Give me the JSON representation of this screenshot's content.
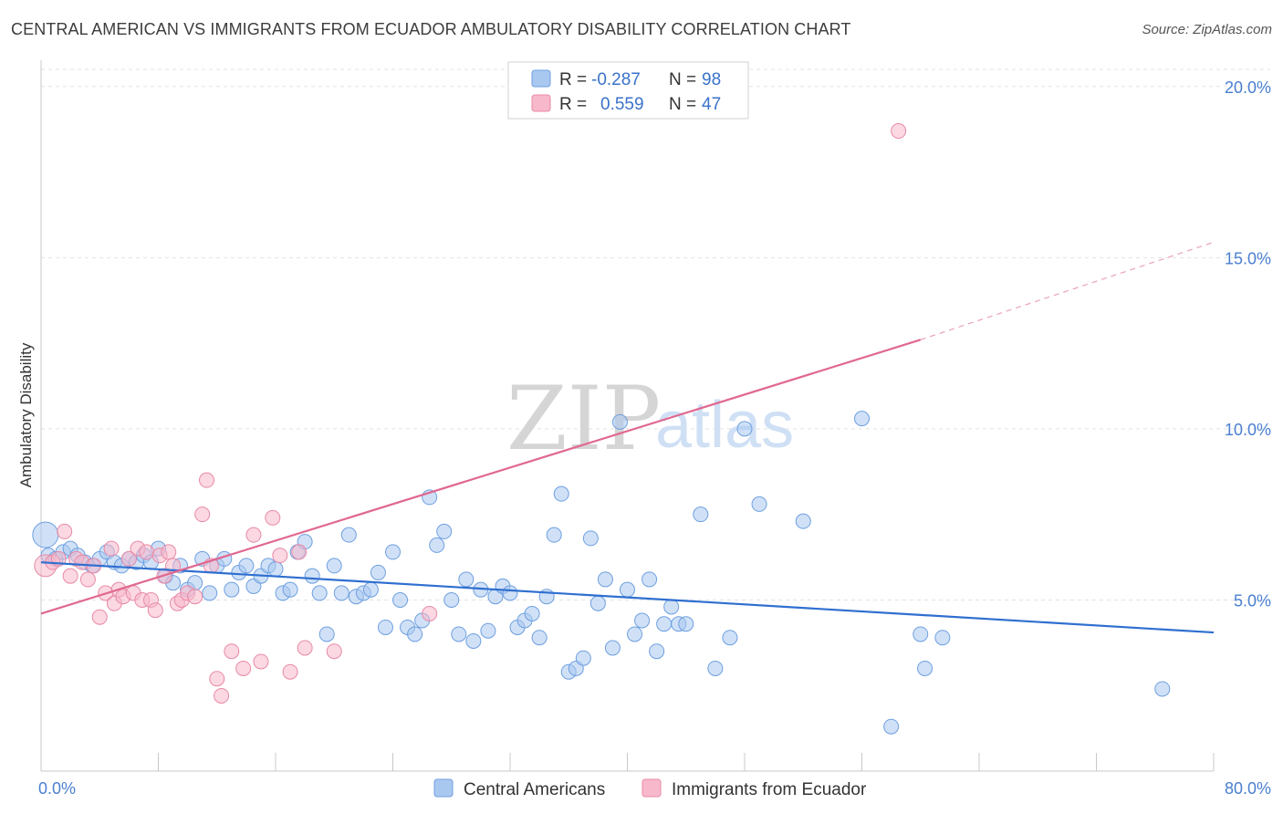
{
  "title": "CENTRAL AMERICAN VS IMMIGRANTS FROM ECUADOR AMBULATORY DISABILITY CORRELATION CHART",
  "source": "Source: ZipAtlas.com",
  "watermark": {
    "zip": "ZIP",
    "atlas": "atlas"
  },
  "legend": {
    "rows": [
      {
        "r_label": "R =",
        "r_value": "-0.287",
        "n_label": "N =",
        "n_value": "98",
        "color": "#a9c8f0",
        "stroke": "#6e9fe0"
      },
      {
        "r_label": "R =",
        "r_value": "0.559",
        "n_label": "N =",
        "n_value": "47",
        "color": "#f7b8cb",
        "stroke": "#e88aa6"
      }
    ]
  },
  "bottom_legend": [
    {
      "label": "Central Americans",
      "color": "#a9c8f0",
      "stroke": "#6e9fe0"
    },
    {
      "label": "Immigrants from Ecuador",
      "color": "#f7b8cb",
      "stroke": "#e88aa6"
    }
  ],
  "chart_data": {
    "type": "scatter",
    "ylabel": "Ambulatory Disability",
    "xlim": [
      0,
      80
    ],
    "ylim": [
      0,
      20.5
    ],
    "x_tick_labels": [
      "0.0%",
      "80.0%"
    ],
    "y_ticks": [
      5,
      10,
      15,
      20
    ],
    "y_tick_labels": [
      "5.0%",
      "10.0%",
      "15.0%",
      "20.0%"
    ],
    "grid": true,
    "series": [
      {
        "name": "Central Americans",
        "color": "#6e9fe0",
        "fill": "#a9c8f0",
        "trend": {
          "x0": 0,
          "y0": 6.1,
          "x1": 80,
          "y1": 4.05
        },
        "points": [
          [
            0.3,
            6.9,
            14
          ],
          [
            0.5,
            6.3,
            8
          ],
          [
            1.0,
            6.2,
            8
          ],
          [
            1.5,
            6.4,
            8
          ],
          [
            2.0,
            6.5,
            8
          ],
          [
            2.5,
            6.3,
            8
          ],
          [
            3.0,
            6.1,
            8
          ],
          [
            3.5,
            6.0,
            8
          ],
          [
            4.0,
            6.2,
            8
          ],
          [
            4.5,
            6.4,
            8
          ],
          [
            5.0,
            6.1,
            8
          ],
          [
            5.5,
            6.0,
            8
          ],
          [
            6.0,
            6.2,
            8
          ],
          [
            6.5,
            6.1,
            8
          ],
          [
            7.0,
            6.3,
            8
          ],
          [
            7.5,
            6.1,
            8
          ],
          [
            8.0,
            6.5,
            8
          ],
          [
            8.5,
            5.7,
            8
          ],
          [
            9.0,
            5.5,
            8
          ],
          [
            9.5,
            6.0,
            8
          ],
          [
            10.0,
            5.3,
            8
          ],
          [
            10.5,
            5.5,
            8
          ],
          [
            11.0,
            6.2,
            8
          ],
          [
            11.5,
            5.2,
            8
          ],
          [
            12.0,
            6.0,
            8
          ],
          [
            12.5,
            6.2,
            8
          ],
          [
            13.0,
            5.3,
            8
          ],
          [
            13.5,
            5.8,
            8
          ],
          [
            14.0,
            6.0,
            8
          ],
          [
            14.5,
            5.4,
            8
          ],
          [
            15.0,
            5.7,
            8
          ],
          [
            15.5,
            6.0,
            8
          ],
          [
            16.0,
            5.9,
            8
          ],
          [
            16.5,
            5.2,
            8
          ],
          [
            17.0,
            5.3,
            8
          ],
          [
            17.5,
            6.4,
            8
          ],
          [
            18.0,
            6.7,
            8
          ],
          [
            18.5,
            5.7,
            8
          ],
          [
            19.0,
            5.2,
            8
          ],
          [
            19.5,
            4.0,
            8
          ],
          [
            20.0,
            6.0,
            8
          ],
          [
            20.5,
            5.2,
            8
          ],
          [
            21.0,
            6.9,
            8
          ],
          [
            21.5,
            5.1,
            8
          ],
          [
            22.0,
            5.2,
            8
          ],
          [
            22.5,
            5.3,
            8
          ],
          [
            23.0,
            5.8,
            8
          ],
          [
            23.5,
            4.2,
            8
          ],
          [
            24.0,
            6.4,
            8
          ],
          [
            24.5,
            5.0,
            8
          ],
          [
            25.0,
            4.2,
            8
          ],
          [
            25.5,
            4.0,
            8
          ],
          [
            26.0,
            4.4,
            8
          ],
          [
            26.5,
            8.0,
            8
          ],
          [
            27.0,
            6.6,
            8
          ],
          [
            27.5,
            7.0,
            8
          ],
          [
            28.0,
            5.0,
            8
          ],
          [
            28.5,
            4.0,
            8
          ],
          [
            29.0,
            5.6,
            8
          ],
          [
            29.5,
            3.8,
            8
          ],
          [
            30.0,
            5.3,
            8
          ],
          [
            30.5,
            4.1,
            8
          ],
          [
            31.0,
            5.1,
            8
          ],
          [
            31.5,
            5.4,
            8
          ],
          [
            32.0,
            5.2,
            8
          ],
          [
            32.5,
            4.2,
            8
          ],
          [
            33.0,
            4.4,
            8
          ],
          [
            33.5,
            4.6,
            8
          ],
          [
            34.0,
            3.9,
            8
          ],
          [
            34.5,
            5.1,
            8
          ],
          [
            35.0,
            6.9,
            8
          ],
          [
            35.5,
            8.1,
            8
          ],
          [
            36.0,
            2.9,
            8
          ],
          [
            36.5,
            3.0,
            8
          ],
          [
            37.0,
            3.3,
            8
          ],
          [
            37.5,
            6.8,
            8
          ],
          [
            38.0,
            4.9,
            8
          ],
          [
            38.5,
            5.6,
            8
          ],
          [
            39.0,
            3.6,
            8
          ],
          [
            39.5,
            10.2,
            8
          ],
          [
            40.0,
            5.3,
            8
          ],
          [
            40.5,
            4.0,
            8
          ],
          [
            41.0,
            4.4,
            8
          ],
          [
            41.5,
            5.6,
            8
          ],
          [
            42.0,
            3.5,
            8
          ],
          [
            42.5,
            4.3,
            8
          ],
          [
            43.0,
            4.8,
            8
          ],
          [
            43.5,
            4.3,
            8
          ],
          [
            44.0,
            4.3,
            8
          ],
          [
            45.0,
            7.5,
            8
          ],
          [
            46.0,
            3.0,
            8
          ],
          [
            47.0,
            3.9,
            8
          ],
          [
            48.0,
            10.0,
            8
          ],
          [
            49.0,
            7.8,
            8
          ],
          [
            52.0,
            7.3,
            8
          ],
          [
            56.0,
            10.3,
            8
          ],
          [
            58.0,
            1.3,
            8
          ],
          [
            60.0,
            4.0,
            8
          ],
          [
            60.3,
            3.0,
            8
          ],
          [
            61.5,
            3.9,
            8
          ],
          [
            76.5,
            2.4,
            8
          ]
        ]
      },
      {
        "name": "Immigrants from Ecuador",
        "color": "#e88aa6",
        "fill": "#f7b8cb",
        "trend": {
          "x0": 0,
          "y0": 4.6,
          "x1": 60,
          "y1": 12.6
        },
        "trend_extension": {
          "x1": 80,
          "y1": 15.45
        },
        "points": [
          [
            0.3,
            6.0,
            12
          ],
          [
            0.8,
            6.1,
            8
          ],
          [
            1.2,
            6.2,
            8
          ],
          [
            1.6,
            7.0,
            8
          ],
          [
            2.0,
            5.7,
            8
          ],
          [
            2.4,
            6.2,
            8
          ],
          [
            2.8,
            6.1,
            8
          ],
          [
            3.2,
            5.6,
            8
          ],
          [
            3.6,
            6.0,
            8
          ],
          [
            4.0,
            4.5,
            8
          ],
          [
            4.4,
            5.2,
            8
          ],
          [
            4.8,
            6.5,
            8
          ],
          [
            5.0,
            4.9,
            8
          ],
          [
            5.3,
            5.3,
            8
          ],
          [
            5.6,
            5.1,
            8
          ],
          [
            6.0,
            6.2,
            8
          ],
          [
            6.3,
            5.2,
            8
          ],
          [
            6.6,
            6.5,
            8
          ],
          [
            6.9,
            5.0,
            8
          ],
          [
            7.2,
            6.4,
            8
          ],
          [
            7.5,
            5.0,
            8
          ],
          [
            7.8,
            4.7,
            8
          ],
          [
            8.1,
            6.3,
            8
          ],
          [
            8.4,
            5.7,
            8
          ],
          [
            8.7,
            6.4,
            8
          ],
          [
            9.0,
            6.0,
            8
          ],
          [
            9.3,
            4.9,
            8
          ],
          [
            9.6,
            5.0,
            8
          ],
          [
            10.0,
            5.2,
            8
          ],
          [
            10.5,
            5.1,
            8
          ],
          [
            11.0,
            7.5,
            8
          ],
          [
            11.3,
            8.5,
            8
          ],
          [
            11.6,
            6.0,
            8
          ],
          [
            12.0,
            2.7,
            8
          ],
          [
            12.3,
            2.2,
            8
          ],
          [
            13.0,
            3.5,
            8
          ],
          [
            13.8,
            3.0,
            8
          ],
          [
            14.5,
            6.9,
            8
          ],
          [
            15.0,
            3.2,
            8
          ],
          [
            15.8,
            7.4,
            8
          ],
          [
            16.3,
            6.3,
            8
          ],
          [
            17.0,
            2.9,
            8
          ],
          [
            17.6,
            6.4,
            8
          ],
          [
            18.0,
            3.6,
            8
          ],
          [
            20.0,
            3.5,
            8
          ],
          [
            26.5,
            4.6,
            8
          ],
          [
            58.5,
            18.7,
            8
          ]
        ]
      }
    ]
  }
}
